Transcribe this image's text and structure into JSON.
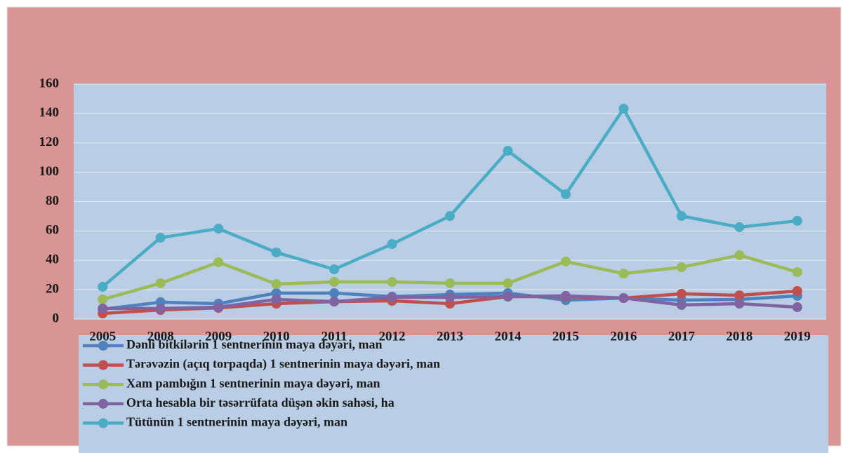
{
  "chart_data": {
    "type": "line",
    "categories": [
      "2005",
      "2008",
      "2009",
      "2010",
      "2011",
      "2012",
      "2013",
      "2014",
      "2015",
      "2016",
      "2017",
      "2018",
      "2019"
    ],
    "series": [
      {
        "name": "Dənli bitkilərin 1 sentnerinin maya dəyəri, man",
        "color": "#4f81bd",
        "values": [
          6.7,
          11.5,
          10.5,
          17.7,
          17.7,
          15.3,
          16.7,
          17.7,
          12.9,
          14.3,
          12.9,
          13.4,
          15.8
        ]
      },
      {
        "name": "Tərəvəzin (açıq torpaqda)  1 sentnerinin maya dəyəri, man",
        "color": "#c0504d",
        "values": [
          3.8,
          6.2,
          7.6,
          10.5,
          11.9,
          12.4,
          10.5,
          15.3,
          15.3,
          14.3,
          17.2,
          16.2,
          19.1
        ]
      },
      {
        "name": "Xam pambığın  1 sentnerinin maya dəyəri, man",
        "color": "#9bbb59",
        "values": [
          13.4,
          24.4,
          38.7,
          23.9,
          25.3,
          25.3,
          24.4,
          24.4,
          39.2,
          31,
          35.3,
          43.5,
          32
        ]
      },
      {
        "name": "Orta hesabla bir təsərrüfata düşən  əkin sahəsi, ha",
        "color": "#8064a2",
        "values": [
          7.2,
          7.2,
          8.1,
          13.4,
          11.9,
          14.8,
          14.8,
          15.3,
          15.8,
          14.3,
          9.6,
          10.5,
          8.1
        ]
      },
      {
        "name": "Tütünün 1 sentnerinin maya dəyəri, man",
        "color": "#4bacc6",
        "values": [
          22,
          55.4,
          61.6,
          45.4,
          33.9,
          51.1,
          70.2,
          114.6,
          85,
          143.3,
          70.2,
          62.6,
          66.9
        ]
      }
    ],
    "ylim": [
      0,
      160
    ],
    "yticks": [
      0,
      20,
      40,
      60,
      80,
      100,
      120,
      140,
      160
    ],
    "grid": true
  }
}
